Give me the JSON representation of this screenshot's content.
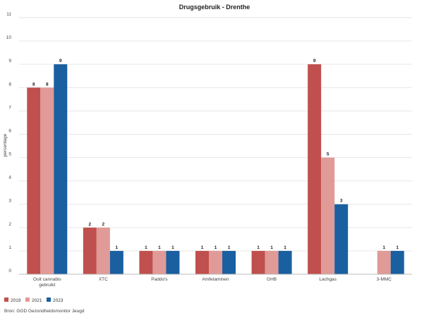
{
  "chart_data": {
    "type": "bar",
    "title": "Drugsgebruik - Drenthe",
    "ylabel": "percentage",
    "xlabel": "",
    "ylim": [
      0,
      11
    ],
    "yticks": [
      0,
      1,
      2,
      3,
      4,
      5,
      6,
      7,
      8,
      9,
      10,
      11
    ],
    "grid": true,
    "legend": "bottom-left",
    "categories": [
      [
        "Ooit cannabis",
        "gebruikt"
      ],
      [
        "XTC"
      ],
      [
        "Paddo's"
      ],
      [
        "Amfetaminen"
      ],
      [
        "GHB"
      ],
      [
        "Lachgas"
      ],
      [
        "3-MMC"
      ]
    ],
    "series": [
      {
        "name": "2019",
        "color": "#c0504d",
        "values": [
          8,
          2,
          1,
          1,
          1,
          9,
          null
        ]
      },
      {
        "name": "2021",
        "color": "#e09a97",
        "values": [
          8,
          2,
          1,
          1,
          1,
          5,
          1
        ]
      },
      {
        "name": "2023",
        "color": "#1a5fa0",
        "values": [
          9,
          1,
          1,
          1,
          1,
          3,
          1
        ]
      }
    ]
  },
  "source": "Bron: GGD Gezondheidsmonitor Jeugd"
}
